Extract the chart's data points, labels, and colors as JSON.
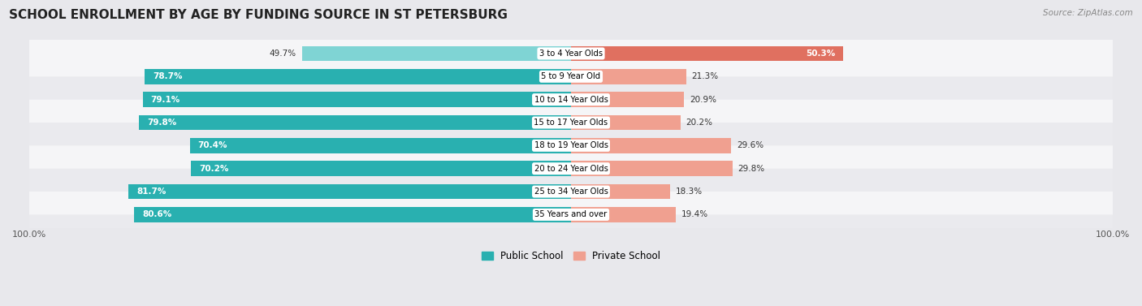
{
  "title": "SCHOOL ENROLLMENT BY AGE BY FUNDING SOURCE IN ST PETERSBURG",
  "source": "Source: ZipAtlas.com",
  "categories": [
    "3 to 4 Year Olds",
    "5 to 9 Year Old",
    "10 to 14 Year Olds",
    "15 to 17 Year Olds",
    "18 to 19 Year Olds",
    "20 to 24 Year Olds",
    "25 to 34 Year Olds",
    "35 Years and over"
  ],
  "public_values": [
    49.7,
    78.7,
    79.1,
    79.8,
    70.4,
    70.2,
    81.7,
    80.6
  ],
  "private_values": [
    50.3,
    21.3,
    20.9,
    20.2,
    29.6,
    29.8,
    18.3,
    19.4
  ],
  "public_color_normal": "#29b0b0",
  "public_color_light": "#7fd4d4",
  "private_color_dark": "#e07060",
  "private_color_light": "#f0a090",
  "bg_color": "#e8e8ec",
  "row_bg_even": "#f5f5f7",
  "row_bg_odd": "#eaeaee",
  "axis_label_left": "100.0%",
  "axis_label_right": "100.0%",
  "legend_public": "Public School",
  "legend_private": "Private School",
  "title_fontsize": 11,
  "bar_height": 0.65,
  "figsize": [
    14.06,
    3.77
  ]
}
